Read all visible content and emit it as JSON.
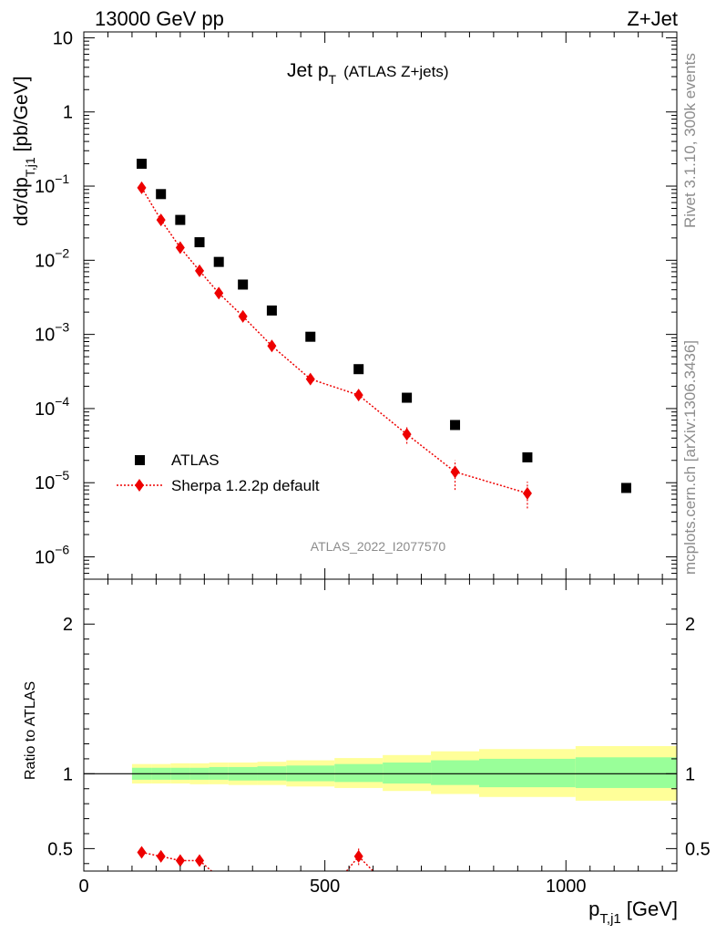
{
  "header": {
    "left": "13000 GeV pp",
    "right": "Z+Jet",
    "side_top": "Rivet 3.1.10,  300k events",
    "side_bottom": "mcplots.cern.ch [arXiv:1306.3436]"
  },
  "chart_data": {
    "type": "scatter",
    "title_main": "Jet p",
    "title_sub": "T",
    "title_suffix": "(ATLAS Z+jets)",
    "analysis_label": "ATLAS_2022_I2077570",
    "xlabel": "p",
    "xlabel_sub": "T,j1",
    "xlabel_unit": "[GeV]",
    "ylabel_main": "dσ/dp",
    "ylabel_sub": "T,j1",
    "ylabel_unit": "[pb/GeV]",
    "ratio_ylabel": "Ratio to ATLAS",
    "xlim": [
      0,
      1230
    ],
    "ylim_main": [
      5e-07,
      12
    ],
    "ylim_ratio": [
      0.35,
      2.3
    ],
    "x_ticks": [
      0,
      500,
      1000
    ],
    "x_tick_labels": [
      "0",
      "500",
      "1000"
    ],
    "y_ticks_main": [
      1e-06,
      1e-05,
      0.0001,
      0.001,
      0.01,
      0.1,
      1,
      10
    ],
    "y_tick_labels_main": [
      {
        "base": "10",
        "exp": "−6"
      },
      {
        "base": "10",
        "exp": "−5"
      },
      {
        "base": "10",
        "exp": "−4"
      },
      {
        "base": "10",
        "exp": "−3"
      },
      {
        "base": "10",
        "exp": "−2"
      },
      {
        "base": "10",
        "exp": "−1"
      },
      {
        "base": "1",
        "exp": ""
      },
      {
        "base": "10",
        "exp": ""
      }
    ],
    "y_ticks_ratio": [
      0.5,
      1,
      2
    ],
    "y_tick_labels_ratio": [
      "0.5",
      "1",
      "2"
    ],
    "legend": [
      "ATLAS",
      "Sherpa 1.2.2p default"
    ],
    "colors": {
      "data": "#000000",
      "mc": "#ee0000",
      "band_inner": "#99ff99",
      "band_outer": "#ffff99"
    },
    "data_series": {
      "name": "ATLAS",
      "x": [
        120,
        160,
        200,
        240,
        280,
        330,
        390,
        470,
        570,
        670,
        770,
        920,
        1125
      ],
      "y": [
        0.2,
        0.078,
        0.035,
        0.0175,
        0.0095,
        0.0047,
        0.0021,
        0.00093,
        0.00034,
        0.00014,
        6e-05,
        2.2e-05,
        8.5e-06
      ]
    },
    "mc_series": {
      "name": "Sherpa 1.2.2p default",
      "x": [
        120,
        160,
        200,
        240,
        280,
        330,
        390,
        470,
        570,
        670,
        770,
        920
      ],
      "y": [
        0.095,
        0.035,
        0.0148,
        0.0072,
        0.0036,
        0.00175,
        0.0007,
        0.00025,
        0.000152,
        4.5e-05,
        1.4e-05,
        7.2e-06
      ],
      "err_low": [
        0.09,
        0.0335,
        0.014,
        0.0068,
        0.0034,
        0.00166,
        0.00066,
        0.000236,
        0.000138,
        3.35e-05,
        8e-06,
        4.5e-06
      ],
      "err_high": [
        0.1,
        0.0365,
        0.0156,
        0.0076,
        0.0038,
        0.00184,
        0.00074,
        0.000264,
        0.000166,
        5.65e-05,
        2e-05,
        1.03e-05
      ]
    },
    "ratio_mc": {
      "x": [
        120,
        160,
        200,
        240,
        570
      ],
      "y": [
        0.475,
        0.448,
        0.42,
        0.42,
        0.448
      ],
      "err_low": [
        0.47,
        0.44,
        0.41,
        0.41,
        0.39
      ],
      "err_high": [
        0.48,
        0.456,
        0.43,
        0.43,
        0.51
      ]
    },
    "uncertainty_bands": {
      "bin_edges": [
        100,
        140,
        180,
        220,
        260,
        300,
        360,
        420,
        520,
        620,
        720,
        820,
        1020,
        1230
      ],
      "inner_low": [
        0.96,
        0.96,
        0.96,
        0.96,
        0.96,
        0.955,
        0.955,
        0.95,
        0.945,
        0.935,
        0.925,
        0.91,
        0.905
      ],
      "inner_high": [
        1.04,
        1.04,
        1.04,
        1.04,
        1.045,
        1.045,
        1.05,
        1.055,
        1.065,
        1.075,
        1.09,
        1.1,
        1.11
      ],
      "outer_low": [
        0.935,
        0.935,
        0.935,
        0.93,
        0.93,
        0.925,
        0.925,
        0.915,
        0.905,
        0.885,
        0.865,
        0.845,
        0.82
      ],
      "outer_high": [
        1.065,
        1.065,
        1.07,
        1.07,
        1.075,
        1.075,
        1.08,
        1.09,
        1.105,
        1.125,
        1.15,
        1.165,
        1.185
      ]
    }
  }
}
